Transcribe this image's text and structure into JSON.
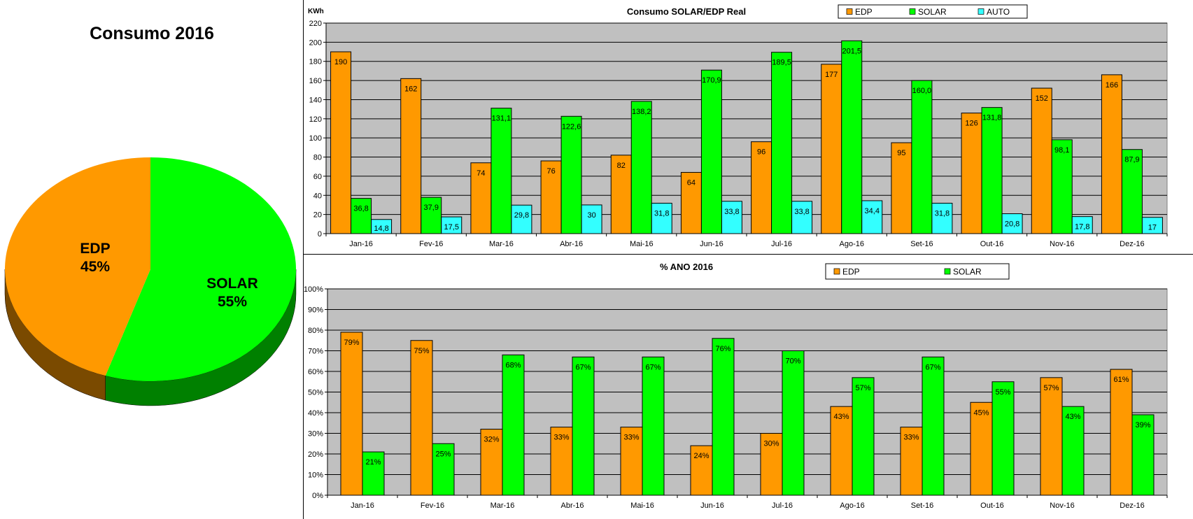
{
  "chart_data": [
    {
      "type": "pie",
      "title": "Consumo 2016",
      "slices": [
        {
          "label": "EDP",
          "value": 45,
          "display": "45%",
          "color": "#FF9900",
          "shade": "#7A4A00"
        },
        {
          "label": "SOLAR",
          "value": 55,
          "display": "55%",
          "color": "#00FF00",
          "shade": "#008000"
        }
      ],
      "three_d": true
    },
    {
      "type": "bar",
      "title": "Consumo SOLAR/EDP Real",
      "ylabel": "KWh",
      "ylim": [
        0,
        220
      ],
      "yticks": [
        "0",
        "20",
        "40",
        "60",
        "80",
        "100",
        "120",
        "140",
        "160",
        "180",
        "200",
        "220"
      ],
      "grid": true,
      "legend_position": "top",
      "categories": [
        "Jan-16",
        "Fev-16",
        "Mar-16",
        "Abr-16",
        "Mai-16",
        "Jun-16",
        "Jul-16",
        "Ago-16",
        "Set-16",
        "Out-16",
        "Nov-16",
        "Dez-16"
      ],
      "series": [
        {
          "name": "EDP",
          "color": "#FF9900",
          "values": [
            190,
            162,
            74,
            76,
            82,
            64,
            96,
            177,
            95,
            126,
            152,
            166
          ],
          "labels": [
            "190",
            "162",
            "74",
            "76",
            "82",
            "64",
            "96",
            "177",
            "95",
            "126",
            "152",
            "166"
          ]
        },
        {
          "name": "SOLAR",
          "color": "#00FF00",
          "values": [
            36.8,
            37.9,
            131.1,
            122.6,
            138.2,
            170.9,
            189.5,
            201.5,
            160.0,
            131.8,
            98.1,
            87.9
          ],
          "labels": [
            "36,8",
            "37,9",
            "131,1",
            "122,6",
            "138,2",
            "170,9",
            "189,5",
            "201,5",
            "160,0",
            "131,8",
            "98,1",
            "87,9"
          ]
        },
        {
          "name": "AUTO",
          "color": "#33FFFF",
          "values": [
            14.8,
            17.5,
            29.8,
            30,
            31.8,
            33.8,
            33.8,
            34.4,
            31.8,
            20.8,
            17.8,
            17
          ],
          "labels": [
            "14,8",
            "17,5",
            "29,8",
            "30",
            "31,8",
            "33,8",
            "33,8",
            "34,4",
            "31,8",
            "20,8",
            "17,8",
            "17"
          ]
        }
      ]
    },
    {
      "type": "bar",
      "title": "% ANO 2016",
      "ylim": [
        0,
        100
      ],
      "yticks": [
        "0%",
        "10%",
        "20%",
        "30%",
        "40%",
        "50%",
        "60%",
        "70%",
        "80%",
        "90%",
        "100%"
      ],
      "grid": true,
      "legend_position": "top",
      "categories": [
        "Jan-16",
        "Fev-16",
        "Mar-16",
        "Abr-16",
        "Mai-16",
        "Jun-16",
        "Jul-16",
        "Ago-16",
        "Set-16",
        "Out-16",
        "Nov-16",
        "Dez-16"
      ],
      "series": [
        {
          "name": "EDP",
          "color": "#FF9900",
          "values": [
            79,
            75,
            32,
            33,
            33,
            24,
            30,
            43,
            33,
            45,
            57,
            61
          ],
          "labels": [
            "79%",
            "75%",
            "32%",
            "33%",
            "33%",
            "24%",
            "30%",
            "43%",
            "33%",
            "45%",
            "57%",
            "61%"
          ]
        },
        {
          "name": "SOLAR",
          "color": "#00FF00",
          "values": [
            21,
            25,
            68,
            67,
            67,
            76,
            70,
            57,
            67,
            55,
            43,
            39
          ],
          "labels": [
            "21%",
            "25%",
            "68%",
            "67%",
            "67%",
            "76%",
            "70%",
            "57%",
            "67%",
            "55%",
            "43%",
            "39%"
          ]
        }
      ]
    }
  ]
}
